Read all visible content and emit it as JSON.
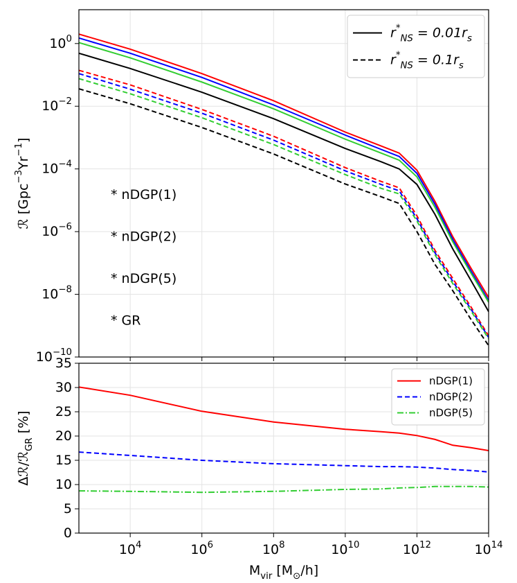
{
  "chart_data": [
    {
      "type": "line",
      "ylabel": "ℛ [Gpc^{−3}Yr^{−1}]",
      "x": [
        370,
        10000,
        1000000,
        100000000,
        10000000000,
        100000000000,
        320000000000,
        1000000000000,
        3200000000000,
        10000000000000,
        32000000000000,
        100000000000000
      ],
      "xlim": [
        370,
        100000000000000
      ],
      "xscale": "log",
      "xticks": [
        10000,
        1000000,
        100000000,
        10000000000,
        1000000000000,
        100000000000000
      ],
      "ylim": [
        1e-10,
        12
      ],
      "yscale": "log",
      "yticks": [
        {
          "value": 1e-10,
          "label": "10^{−10}"
        },
        {
          "value": 1e-08,
          "label": "10^{−8}"
        },
        {
          "value": 1e-06,
          "label": "10^{−6}"
        },
        {
          "value": 0.0001,
          "label": "10^{−4}"
        },
        {
          "value": 0.01,
          "label": "10^{−2}"
        },
        {
          "value": 1,
          "label": "10^{0}"
        }
      ],
      "grid": true,
      "legend_loc": "upper right",
      "legend": [
        {
          "label": "r^{*}_{NS} = 0.01r_{s}",
          "dash": "solid"
        },
        {
          "label": "r^{*}_{NS} = 0.1r_{s}",
          "dash": "dashed"
        }
      ],
      "annotations": [
        {
          "text": "* nDGP(1)",
          "color": "#ff0000"
        },
        {
          "text": "* nDGP(2)",
          "color": "#0000ff"
        },
        {
          "text": "* nDGP(5)",
          "color": "#32cd32"
        },
        {
          "text": "* GR",
          "color": "#000000"
        }
      ],
      "series": [
        {
          "color": "#ff0000",
          "dash": "solid",
          "values": [
            2.0,
            0.66,
            0.11,
            0.015,
            0.0015,
            0.00054,
            0.00032,
            9.1e-05,
            9.1e-06,
            6.9e-07,
            6.9e-08,
            7.9e-09
          ]
        },
        {
          "color": "#0000ff",
          "dash": "solid",
          "values": [
            1.5,
            0.49,
            0.083,
            0.011,
            0.0012,
            0.00042,
            0.00025,
            7.2e-05,
            7.4e-06,
            5.6e-07,
            5.6e-08,
            6.3e-09
          ]
        },
        {
          "color": "#32cd32",
          "dash": "solid",
          "values": [
            1.07,
            0.35,
            0.059,
            0.0083,
            0.00089,
            0.00032,
            0.00019,
            5.6e-05,
            5.9e-06,
            4.7e-07,
            4.8e-08,
            5.6e-09
          ]
        },
        {
          "color": "#000000",
          "dash": "solid",
          "values": [
            0.49,
            0.16,
            0.028,
            0.004,
            0.00045,
            0.00017,
            0.0001,
            3.2e-05,
            3.5e-06,
            2.8e-07,
            2.8e-08,
            2.8e-09
          ]
        },
        {
          "color": "#ff0000",
          "dash": "dashed",
          "values": [
            0.14,
            0.048,
            0.0079,
            0.0011,
            0.00011,
            4e-05,
            2.5e-05,
            3.2e-06,
            2.5e-07,
            3.2e-08,
            4e-09,
            4.7e-10
          ]
        },
        {
          "color": "#0000ff",
          "dash": "dashed",
          "values": [
            0.11,
            0.035,
            0.006,
            0.00083,
            8.7e-05,
            3.2e-05,
            2e-05,
            2.6e-06,
            2.1e-07,
            2.6e-08,
            3.4e-09,
            4.2e-10
          ]
        },
        {
          "color": "#32cd32",
          "dash": "dashed",
          "values": [
            0.076,
            0.025,
            0.0043,
            0.0006,
            6.6e-05,
            2.4e-05,
            1.6e-05,
            2.2e-06,
            1.8e-07,
            2.2e-08,
            3e-09,
            3.8e-10
          ]
        },
        {
          "color": "#000000",
          "dash": "dashed",
          "values": [
            0.036,
            0.012,
            0.0021,
            0.0003,
            3.3e-05,
            1.3e-05,
            7.9e-06,
            1e-06,
            8.9e-08,
            1.3e-08,
            1.6e-09,
            2.3e-10
          ]
        }
      ]
    },
    {
      "type": "line",
      "xlabel": "M_{vir} [M_{⊙}/h]",
      "ylabel": "Δℛ/ℛ_{GR} [%]",
      "x": [
        370,
        10000,
        1000000,
        100000000,
        10000000000,
        100000000000,
        320000000000,
        1000000000000,
        3200000000000,
        10000000000000,
        32000000000000,
        100000000000000
      ],
      "xlim": [
        370,
        100000000000000
      ],
      "xscale": "log",
      "xticks": [
        {
          "value": 10000,
          "label": "10^{4}"
        },
        {
          "value": 1000000,
          "label": "10^{6}"
        },
        {
          "value": 100000000,
          "label": "10^{8}"
        },
        {
          "value": 10000000000,
          "label": "10^{10}"
        },
        {
          "value": 1000000000000,
          "label": "10^{12}"
        },
        {
          "value": 100000000000000,
          "label": "10^{14}"
        }
      ],
      "ylim": [
        0,
        35
      ],
      "yticks": [
        0,
        5,
        10,
        15,
        20,
        25,
        30,
        35
      ],
      "grid": true,
      "legend_loc": "upper right",
      "series": [
        {
          "name": "nDGP(1)",
          "color": "#ff0000",
          "dash": "solid",
          "values": [
            30.1,
            28.4,
            25.1,
            22.9,
            21.4,
            20.9,
            20.6,
            20.1,
            19.3,
            18.1,
            17.6,
            17.0
          ]
        },
        {
          "name": "nDGP(2)",
          "color": "#0000ff",
          "dash": "dashed",
          "values": [
            16.7,
            16.0,
            15.0,
            14.3,
            13.9,
            13.7,
            13.7,
            13.6,
            13.4,
            13.1,
            12.9,
            12.6
          ]
        },
        {
          "name": "nDGP(5)",
          "color": "#32cd32",
          "dash": "dashdot",
          "values": [
            8.7,
            8.6,
            8.4,
            8.6,
            9.0,
            9.1,
            9.3,
            9.4,
            9.6,
            9.6,
            9.6,
            9.5
          ]
        }
      ]
    }
  ]
}
